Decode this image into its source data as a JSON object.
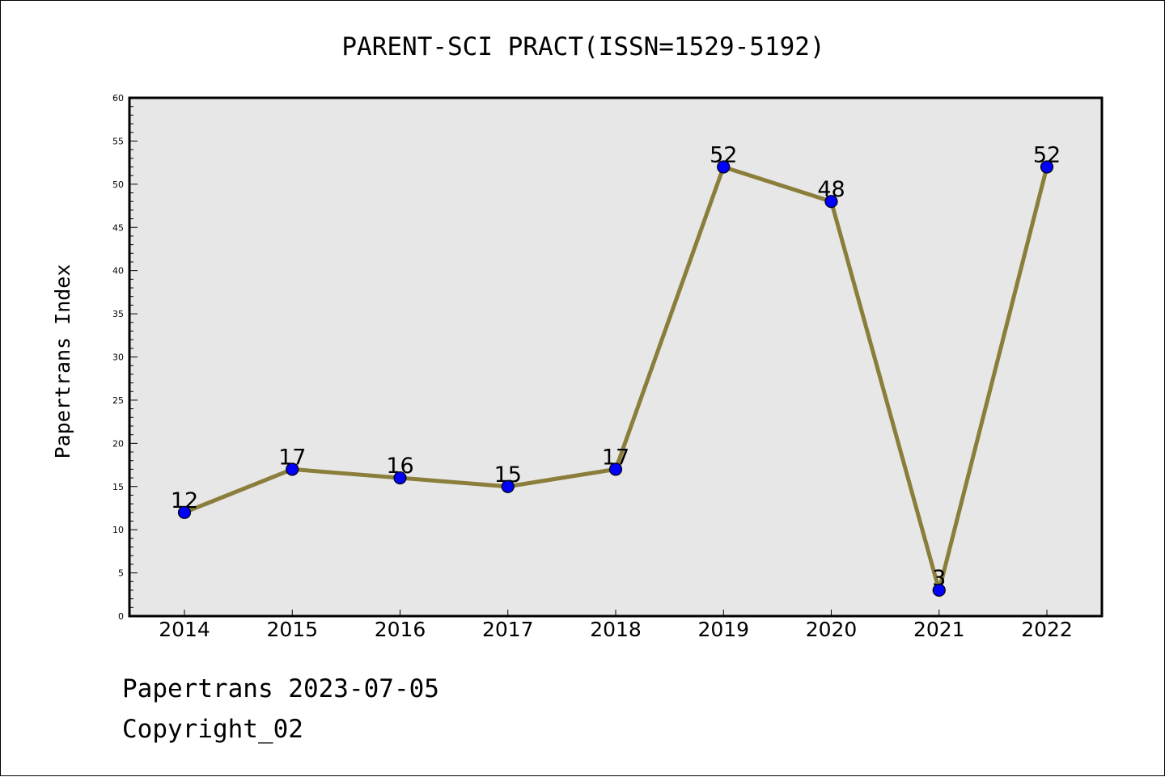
{
  "chart_data": {
    "type": "line",
    "title": "PARENT-SCI PRACT(ISSN=1529-5192)",
    "xlabel": "",
    "ylabel": "Papertrans Index",
    "categories": [
      "2014",
      "2015",
      "2016",
      "2017",
      "2018",
      "2019",
      "2020",
      "2021",
      "2022"
    ],
    "series": [
      {
        "values": [
          12,
          17,
          16,
          15,
          17,
          52,
          48,
          3,
          52
        ]
      }
    ],
    "data_labels": [
      "12",
      "17",
      "16",
      "15",
      "17",
      "52",
      "48",
      "3",
      "52"
    ],
    "ylim": [
      0,
      60
    ],
    "yticks": [
      "0",
      "5",
      "10",
      "15",
      "20",
      "25",
      "30",
      "35",
      "40",
      "45",
      "50",
      "55",
      "60"
    ],
    "grid": false,
    "legend": "none",
    "colors": {
      "line": "#8b7d3a",
      "marker": "#0000ff",
      "plot_background": "#e7e7e7"
    }
  },
  "footer": {
    "line1": "Papertrans 2023-07-05",
    "line2": "Copyright_02"
  }
}
